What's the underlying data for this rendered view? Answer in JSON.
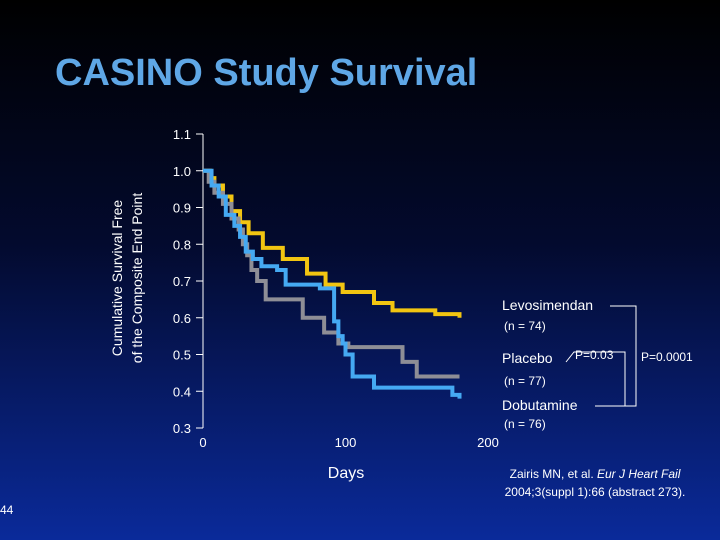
{
  "slide": {
    "title": "CASINO Study Survival",
    "slide_number": "44",
    "citation_line1_prefix": "Zairis MN, et al. ",
    "citation_journal": "Eur J Heart Fail",
    "citation_line2": "2004;3(suppl 1):66 (abstract 273)."
  },
  "colors": {
    "levosimendan": "#f2c511",
    "placebo": "#8e8e96",
    "dobutamine": "#45a9f2",
    "title": "#5fa7e6",
    "axis": "#ffffff"
  },
  "chart_data": {
    "type": "line",
    "step": true,
    "ylabel_line1": "Cumulative Survival Free",
    "ylabel_line2": "of the Composite End Point",
    "xlabel": "Days",
    "xlim": [
      0,
      200
    ],
    "ylim": [
      0.3,
      1.1
    ],
    "xticks": [
      "0",
      "100",
      "200"
    ],
    "yticks": [
      "1.1",
      "1.0",
      "0.9",
      "0.8",
      "0.7",
      "0.6",
      "0.5",
      "0.4",
      "0.3"
    ],
    "series": [
      {
        "name": "Levosimendan",
        "n_label": "(n = 74)",
        "x": [
          0,
          5,
          8,
          14,
          20,
          26,
          32,
          42,
          56,
          73,
          86,
          98,
          120,
          133,
          163,
          180
        ],
        "y": [
          1.0,
          0.98,
          0.96,
          0.93,
          0.89,
          0.86,
          0.83,
          0.79,
          0.76,
          0.72,
          0.69,
          0.67,
          0.64,
          0.62,
          0.61,
          0.6
        ]
      },
      {
        "name": "Placebo",
        "n_label": "(n = 77)",
        "x": [
          0,
          4,
          8,
          14,
          20,
          25,
          28,
          31,
          34,
          38,
          44,
          70,
          85,
          95,
          102,
          140,
          150,
          180
        ],
        "y": [
          1.0,
          0.97,
          0.94,
          0.91,
          0.87,
          0.84,
          0.8,
          0.77,
          0.73,
          0.7,
          0.65,
          0.6,
          0.56,
          0.53,
          0.52,
          0.48,
          0.44,
          0.44
        ]
      },
      {
        "name": "Dobutamine",
        "n_label": "(n = 76)",
        "x": [
          0,
          6,
          11,
          16,
          22,
          26,
          30,
          35,
          41,
          52,
          58,
          82,
          92,
          95,
          98,
          100,
          105,
          120,
          143,
          175,
          180
        ],
        "y": [
          1.0,
          0.96,
          0.93,
          0.88,
          0.85,
          0.82,
          0.78,
          0.76,
          0.74,
          0.73,
          0.69,
          0.68,
          0.59,
          0.55,
          0.53,
          0.5,
          0.44,
          0.41,
          0.41,
          0.39,
          0.38
        ]
      }
    ],
    "annotations": [
      {
        "text": "P=0.03",
        "between": [
          "Placebo",
          "Dobutamine"
        ]
      },
      {
        "text": "P=0.0001",
        "between": [
          "Levosimendan",
          "Dobutamine"
        ]
      }
    ]
  }
}
